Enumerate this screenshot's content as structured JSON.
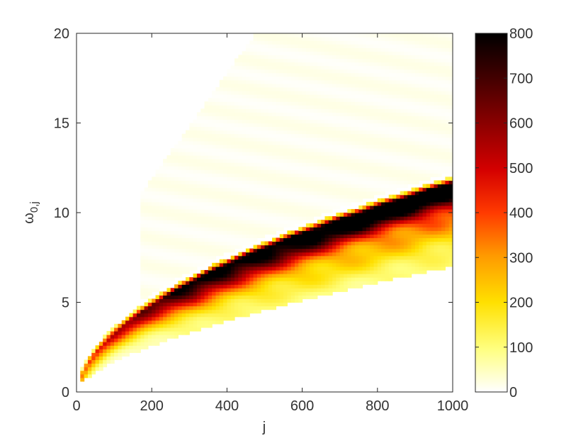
{
  "chart_data": {
    "type": "heatmap",
    "title": "",
    "xlabel": "j",
    "ylabel": "ω",
    "ylabel_subscript": "0,j",
    "xlim": [
      0,
      1000
    ],
    "ylim": [
      0,
      20
    ],
    "x_ticks": [
      "0",
      "200",
      "400",
      "600",
      "800",
      "1000"
    ],
    "y_ticks": [
      "0",
      "5",
      "10",
      "15",
      "20"
    ],
    "x_tick_values": [
      0,
      200,
      400,
      600,
      800,
      1000
    ],
    "y_tick_values": [
      0,
      5,
      10,
      15,
      20
    ],
    "colorbar": {
      "range": [
        0,
        800
      ],
      "ticks": [
        "0",
        "100",
        "200",
        "300",
        "400",
        "500",
        "600",
        "700",
        "800"
      ],
      "tick_values": [
        0,
        100,
        200,
        300,
        400,
        500,
        600,
        700,
        800
      ],
      "colormap": "hot (reversed: white = 0, black = 800)"
    },
    "regions": {
      "upper_faint_band": {
        "j_range": [
          170,
          1000
        ],
        "omega_upper_at_j_max": 20,
        "value_approx": 20
      },
      "main_band": {
        "j_range": [
          10,
          1000
        ],
        "omega_at_j_1000": [
          7,
          12
        ],
        "peak_ridge_omega_at_j_1000": 11.2,
        "value_range": [
          0,
          800
        ]
      }
    }
  }
}
